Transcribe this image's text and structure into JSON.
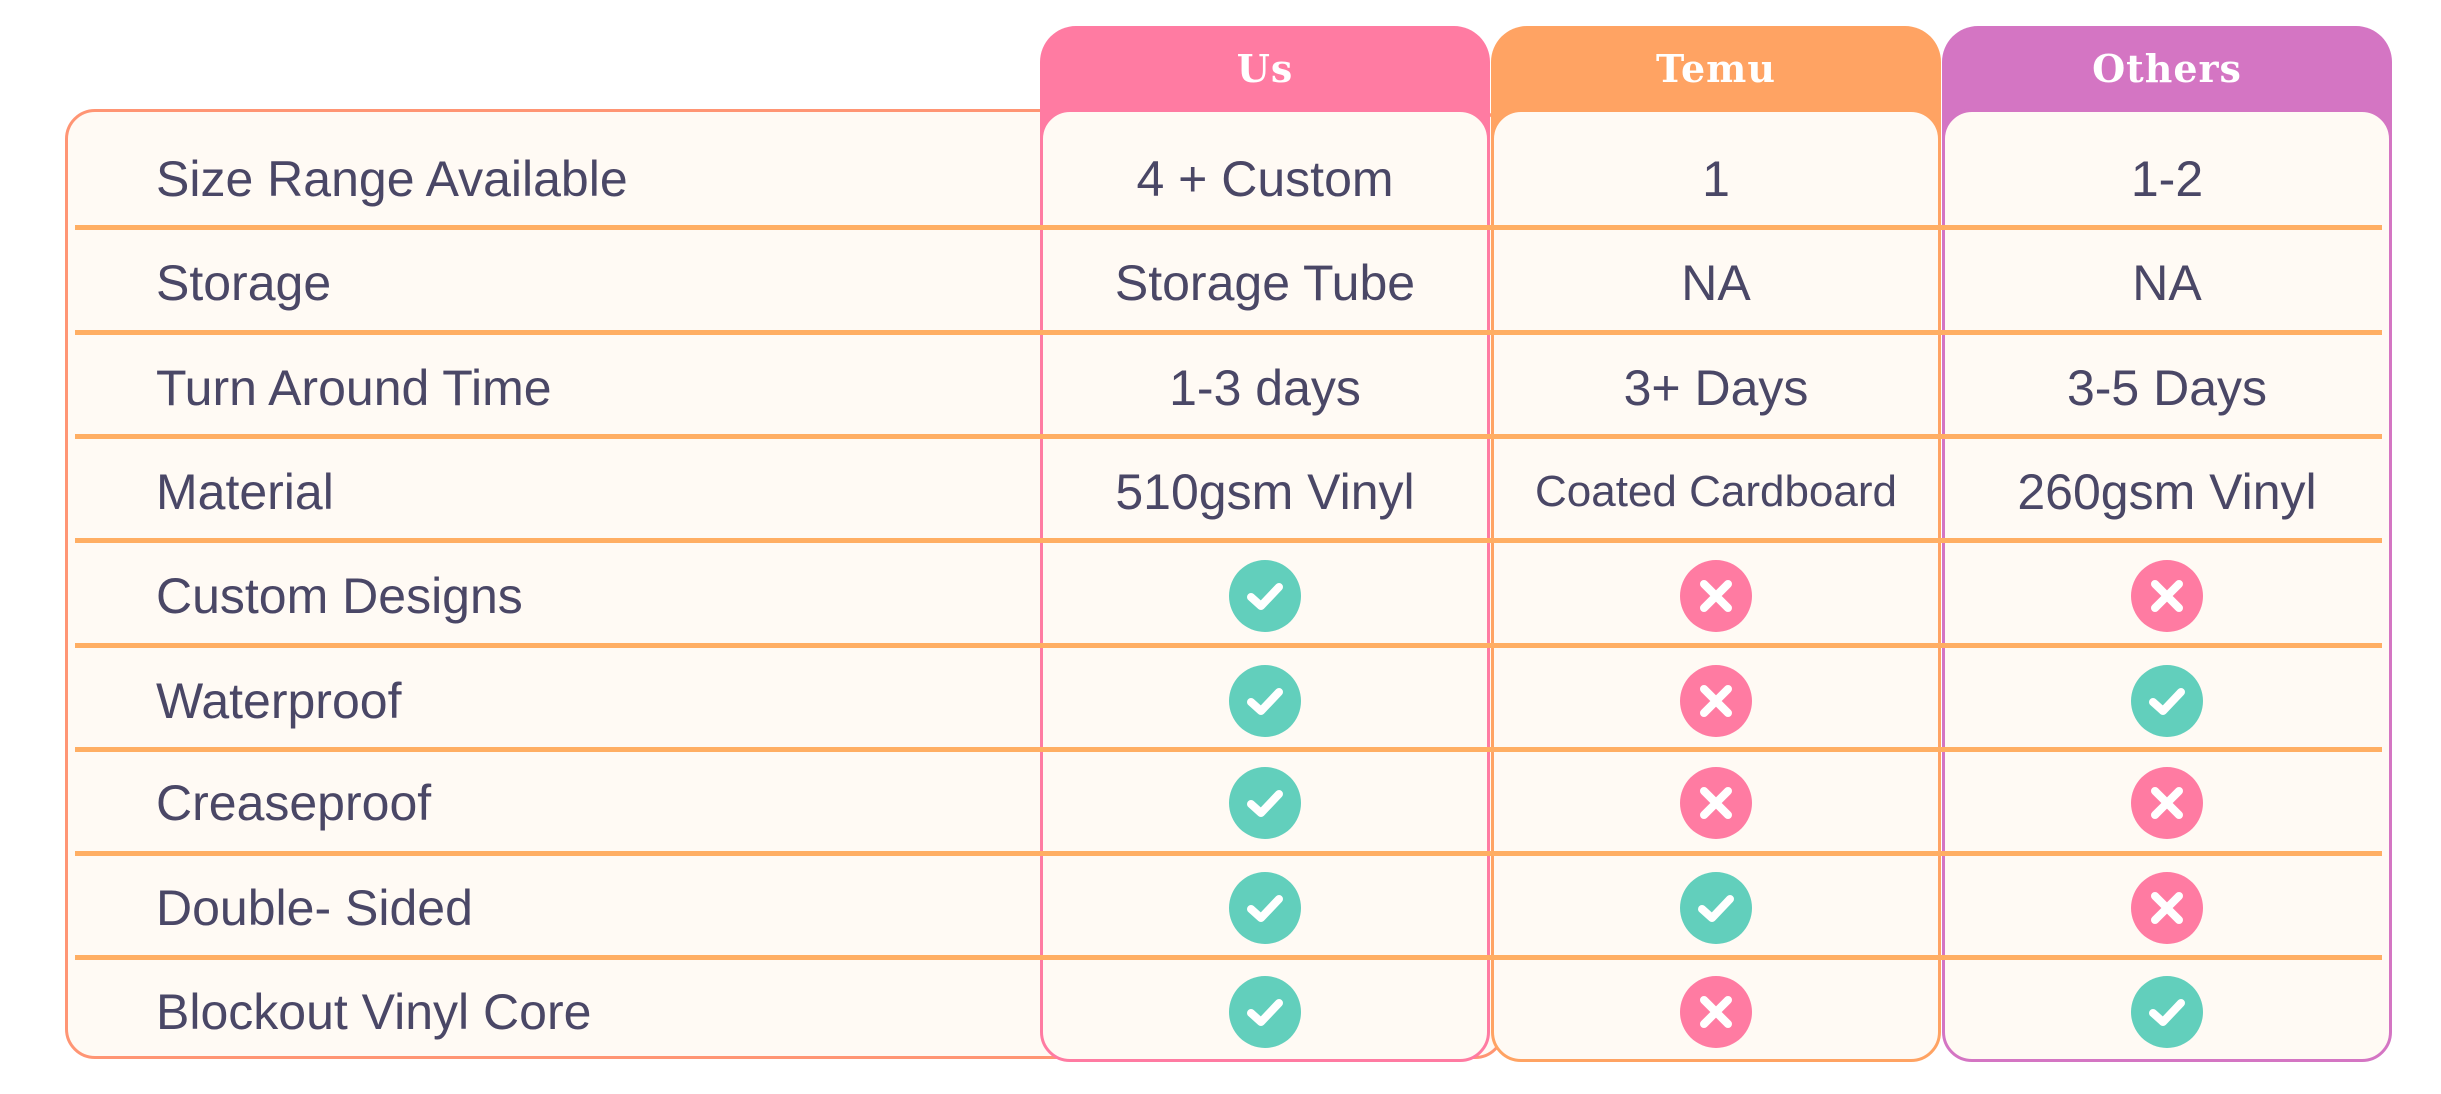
{
  "colors": {
    "us": "#ff7ba2",
    "temu": "#ffa363",
    "others": "#d475c3",
    "check": "#62cfbc",
    "cross": "#ff7ba2",
    "divider": "#ffae63",
    "text": "#4a4766"
  },
  "columns": [
    {
      "key": "us",
      "label": "Us"
    },
    {
      "key": "temu",
      "label": "Temu"
    },
    {
      "key": "others",
      "label": "Others"
    }
  ],
  "rows": [
    {
      "label": "Size Range Available",
      "values": [
        "4 + Custom",
        "1",
        "1-2"
      ]
    },
    {
      "label": "Storage",
      "values": [
        "Storage Tube",
        "NA",
        "NA"
      ]
    },
    {
      "label": "Turn Around Time",
      "values": [
        "1-3 days",
        "3+ Days",
        "3-5 Days"
      ]
    },
    {
      "label": "Material",
      "values": [
        "510gsm Vinyl",
        "Coated Cardboard",
        "260gsm Vinyl"
      ]
    },
    {
      "label": "Custom Designs",
      "values": [
        "check-icon",
        "cross-icon",
        "cross-icon"
      ]
    },
    {
      "label": "Waterproof",
      "values": [
        "check-icon",
        "cross-icon",
        "check-icon"
      ]
    },
    {
      "label": "Creaseproof",
      "values": [
        "check-icon",
        "cross-icon",
        "cross-icon"
      ]
    },
    {
      "label": "Double- Sided",
      "values": [
        "check-icon",
        "check-icon",
        "cross-icon"
      ]
    },
    {
      "label": "Blockout Vinyl Core",
      "values": [
        "check-icon",
        "cross-icon",
        "check-icon"
      ]
    }
  ]
}
